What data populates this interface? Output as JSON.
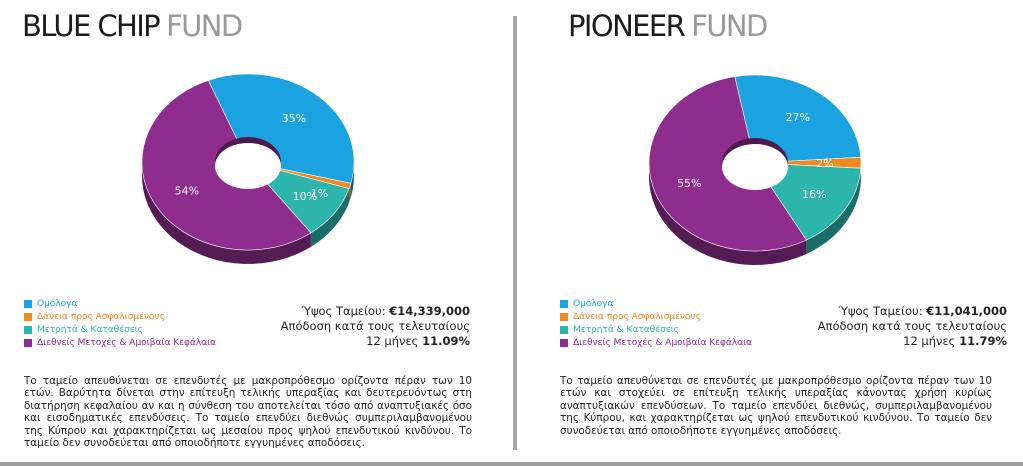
{
  "funds": [
    {
      "title_main": "BLUE CHIP",
      "title_suffix": "FUND",
      "stat_size_label": "Ύψος Ταμείου:",
      "stat_size_value": "€14,339,000",
      "stat_return_line1": "Απόδοση κατά τους τελευταίους",
      "stat_return_line2": "12 μήνες",
      "stat_return_value": "11.09%",
      "description": "Το ταμείο απευθύνεται σε επενδυτές με μακροπρόθεσμο ορίζοντα πέραν των 10 ετών. Βαρύτητα δίνεται στην επίτευξη τελικής υπεραξίας και δευτερευόντως στη διατήρηση κεφαλαίου αν και η σύνθεση του αποτελείται τόσο από αναπτυξιακές όσο και εισοδηματικές επενδύσεις. Το ταμείο επενδύει διεθνώς συμπεριλαμβανομένου της Κύπρου και χαρακτηρίζεται ως μεσαίου προς ψηλού επενδυτικού κινδύνου. Το ταμείο δεν συνοδεύεται από οποιοδήποτε εγγυημένες αποδόσεις."
    },
    {
      "title_main": "PIONEER",
      "title_suffix": "FUND",
      "stat_size_label": "Ύψος Ταμείου:",
      "stat_size_value": "€11,041,000",
      "stat_return_line1": "Απόδοση κατά τους τελευταίους",
      "stat_return_line2": "12 μήνες",
      "stat_return_value": "11.79%",
      "description": "Το ταμείο απευθύνεται σε επενδυτές με μακροπρόθεσμο ορίζοντα πέραν των 10 ετών και στοχεύει σε επίτευξη τελικής υπεραξίας κάνοντας χρήση κυρίως αναπτυξιακών επενδύσεων. Το ταμείο επενδύει διεθνώς, συμπεριλαμβανομένου της Κύπρου, και χαρακτηρίζεται ως ψηλού επενδυτικού κινδύνου. Το ταμείο δεν συνοδεύεται από οποιοδήποτε εγγυημένες αποδόσεις."
    }
  ],
  "legend": [
    {
      "label": "Ομόλογα",
      "color": "#1aa3e0"
    },
    {
      "label": "Δάνεια προς Ασφαλισμένους",
      "color": "#ef8a1e"
    },
    {
      "label": "Μετρητά & Καταθέσεις",
      "color": "#2bb5ad"
    },
    {
      "label": "Διεθνείς Μετοχές & Αμοιβαία Κεφάλαια",
      "color": "#8e2d8e"
    }
  ],
  "chart_data": [
    {
      "type": "pie",
      "categories": [
        "Ομόλογα",
        "Δάνεια προς Ασφαλισμένους",
        "Μετρητά & Καταθέσεις",
        "Διεθνείς Μετοχές & Αμοιβαία Κεφάλαια"
      ],
      "values": [
        35,
        1,
        10,
        54
      ],
      "labels": [
        "35%",
        "1%",
        "10%",
        "54%"
      ],
      "colors": [
        "#1aa3e0",
        "#ef8a1e",
        "#2bb5ad",
        "#8e2d8e"
      ],
      "title": "BLUE CHIP FUND"
    },
    {
      "type": "pie",
      "categories": [
        "Ομόλογα",
        "Δάνεια προς Ασφαλισμένους",
        "Μετρητά & Καταθέσεις",
        "Διεθνείς Μετοχές & Αμοιβαία Κεφάλαια"
      ],
      "values": [
        27,
        2,
        16,
        55
      ],
      "labels": [
        "27%",
        "2%",
        "16%",
        "55%"
      ],
      "colors": [
        "#1aa3e0",
        "#ef8a1e",
        "#2bb5ad",
        "#8e2d8e"
      ],
      "title": "PIONEER FUND"
    }
  ]
}
